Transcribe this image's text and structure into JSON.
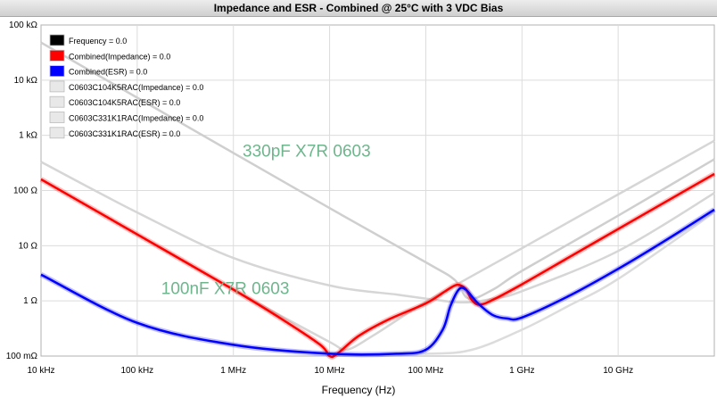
{
  "title": "Impedance and ESR - Combined @ 25°C with 3 VDC Bias",
  "chart_data": {
    "type": "line",
    "title": "Impedance and ESR - Combined @ 25°C with 3 VDC Bias",
    "xlabel": "Frequency (Hz)",
    "ylabel": "",
    "x_scale": "log",
    "y_scale": "log",
    "xlim": [
      10000,
      100000000000
    ],
    "ylim": [
      0.1,
      100000
    ],
    "grid": true,
    "x_ticks": [
      {
        "value": 10000,
        "label": "10 kHz"
      },
      {
        "value": 100000,
        "label": "100 kHz"
      },
      {
        "value": 1000000,
        "label": "1 MHz"
      },
      {
        "value": 10000000,
        "label": "10 MHz"
      },
      {
        "value": 100000000,
        "label": "100 MHz"
      },
      {
        "value": 1000000000,
        "label": "1 GHz"
      },
      {
        "value": 10000000000,
        "label": "10 GHz"
      }
    ],
    "y_ticks": [
      {
        "value": 100000,
        "label": "100 kΩ"
      },
      {
        "value": 10000,
        "label": "10 kΩ"
      },
      {
        "value": 1000,
        "label": "1 kΩ"
      },
      {
        "value": 100,
        "label": "100 Ω"
      },
      {
        "value": 10,
        "label": "10 Ω"
      },
      {
        "value": 1,
        "label": "1 Ω"
      },
      {
        "value": 0.1,
        "label": "100 mΩ"
      }
    ],
    "legend_position": "top-left",
    "legend": [
      {
        "label": "Frequency = 0.0",
        "color": "#000000"
      },
      {
        "label": "Combined(Impedance) = 0.0",
        "color": "#ff0000"
      },
      {
        "label": "Combined(ESR) = 0.0",
        "color": "#0000ff"
      },
      {
        "label": "C0603C104K5RAC(Impedance) = 0.0",
        "color": "#e8e8e8"
      },
      {
        "label": "C0603C104K5RAC(ESR) = 0.0",
        "color": "#e8e8e8"
      },
      {
        "label": "C0603C331K1RAC(Impedance) = 0.0",
        "color": "#e8e8e8"
      },
      {
        "label": "C0603C331K1RAC(ESR) = 0.0",
        "color": "#e8e8e8"
      }
    ],
    "annotations": [
      {
        "text": "330pF X7R 0603",
        "x": 15000000000,
        "y": 500
      },
      {
        "text": "100nF X7R 0603",
        "x": 220000,
        "y": 1.5
      }
    ],
    "series": [
      {
        "key": "c331-impedance",
        "color": "#cfcfcf",
        "x": [
          10000,
          100000,
          1000000,
          10000000,
          100000000,
          200000000,
          280000000,
          500000000,
          1000000000,
          10000000000,
          100000000000
        ],
        "y": [
          48000,
          4800,
          480,
          48,
          5,
          2.4,
          1.1,
          1.6,
          3.5,
          35,
          370
        ]
      },
      {
        "key": "c331-esr",
        "color": "#d6d6d6",
        "x": [
          10000,
          100000,
          1000000,
          10000000,
          50000000,
          100000000,
          200000000,
          300000000,
          500000000,
          1000000000,
          10000000000,
          100000000000
        ],
        "y": [
          330,
          40,
          6,
          1.9,
          1.3,
          1.1,
          0.95,
          0.95,
          1.1,
          1.5,
          8,
          90
        ]
      },
      {
        "key": "c104-impedance",
        "color": "#d6d6d6",
        "x": [
          10000,
          100000,
          1000000,
          10000000,
          15000000,
          30000000,
          100000000,
          1000000000,
          10000000000,
          100000000000
        ],
        "y": [
          160,
          16,
          1.6,
          0.18,
          0.13,
          0.25,
          0.95,
          9,
          85,
          800
        ]
      },
      {
        "key": "c104-esr",
        "color": "#dcdcdc",
        "x": [
          10000,
          100000,
          1000000,
          10000000,
          100000000,
          300000000,
          1000000000,
          3000000000,
          10000000000,
          100000000000
        ],
        "y": [
          3,
          0.4,
          0.16,
          0.11,
          0.11,
          0.13,
          0.3,
          0.8,
          2.5,
          40
        ]
      },
      {
        "key": "combined-impedance",
        "color": "#ff0000",
        "x": [
          10000,
          100000,
          1000000,
          3000000,
          8000000,
          10000000,
          12000000,
          20000000,
          40000000,
          100000000,
          160000000,
          210000000,
          260000000,
          300000000,
          360000000,
          500000000,
          1000000000,
          3000000000,
          10000000000,
          30000000000,
          100000000000
        ],
        "y": [
          160,
          16,
          1.6,
          0.5,
          0.16,
          0.1,
          0.11,
          0.23,
          0.45,
          0.9,
          1.5,
          1.95,
          1.65,
          1.05,
          0.85,
          1.05,
          2,
          6,
          20,
          60,
          200
        ]
      },
      {
        "key": "combined-esr",
        "color": "#0000ff",
        "x": [
          10000,
          100000,
          1000000,
          10000000,
          50000000,
          100000000,
          150000000,
          180000000,
          220000000,
          260000000,
          350000000,
          500000000,
          700000000,
          1000000000,
          3000000000,
          10000000000,
          30000000000,
          100000000000
        ],
        "y": [
          3,
          0.4,
          0.16,
          0.11,
          0.11,
          0.13,
          0.3,
          0.8,
          1.6,
          1.6,
          0.9,
          0.55,
          0.48,
          0.5,
          1.2,
          3.8,
          12,
          45
        ]
      }
    ]
  }
}
